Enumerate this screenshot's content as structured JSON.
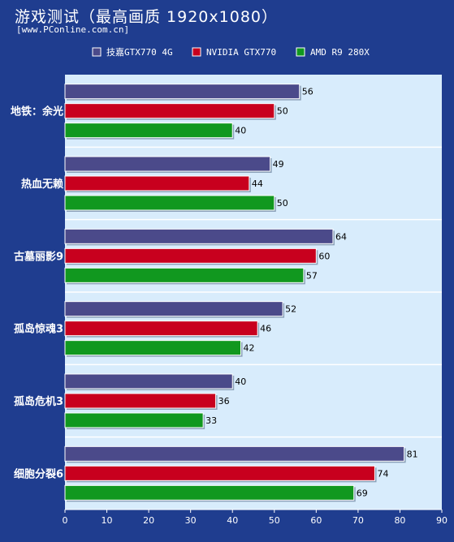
{
  "header": {
    "title": "游戏测试（最高画质 1920x1080）",
    "source": "[www.PConline.com.cn]"
  },
  "colors": {
    "background": "#1f3d8f",
    "plot_area": "#d8ecfc",
    "series": [
      "#4b4a8a",
      "#c8001e",
      "#11981f"
    ]
  },
  "chart_data": {
    "type": "bar",
    "orientation": "horizontal",
    "categories": [
      "地铁：余光",
      "热血无赖",
      "古墓丽影9",
      "孤岛惊魂3",
      "孤岛危机3",
      "细胞分裂6"
    ],
    "series": [
      {
        "name": "技嘉GTX770 4G",
        "values": [
          56,
          49,
          64,
          52,
          40,
          81
        ]
      },
      {
        "name": "NVIDIA GTX770",
        "values": [
          50,
          44,
          60,
          46,
          36,
          74
        ]
      },
      {
        "name": "AMD R9 280X",
        "values": [
          40,
          50,
          57,
          42,
          33,
          69
        ]
      }
    ],
    "xlim": [
      0,
      90
    ],
    "xticks": [
      0,
      10,
      20,
      30,
      40,
      50,
      60,
      70,
      80,
      90
    ],
    "legend_position": "top",
    "grid": false
  }
}
